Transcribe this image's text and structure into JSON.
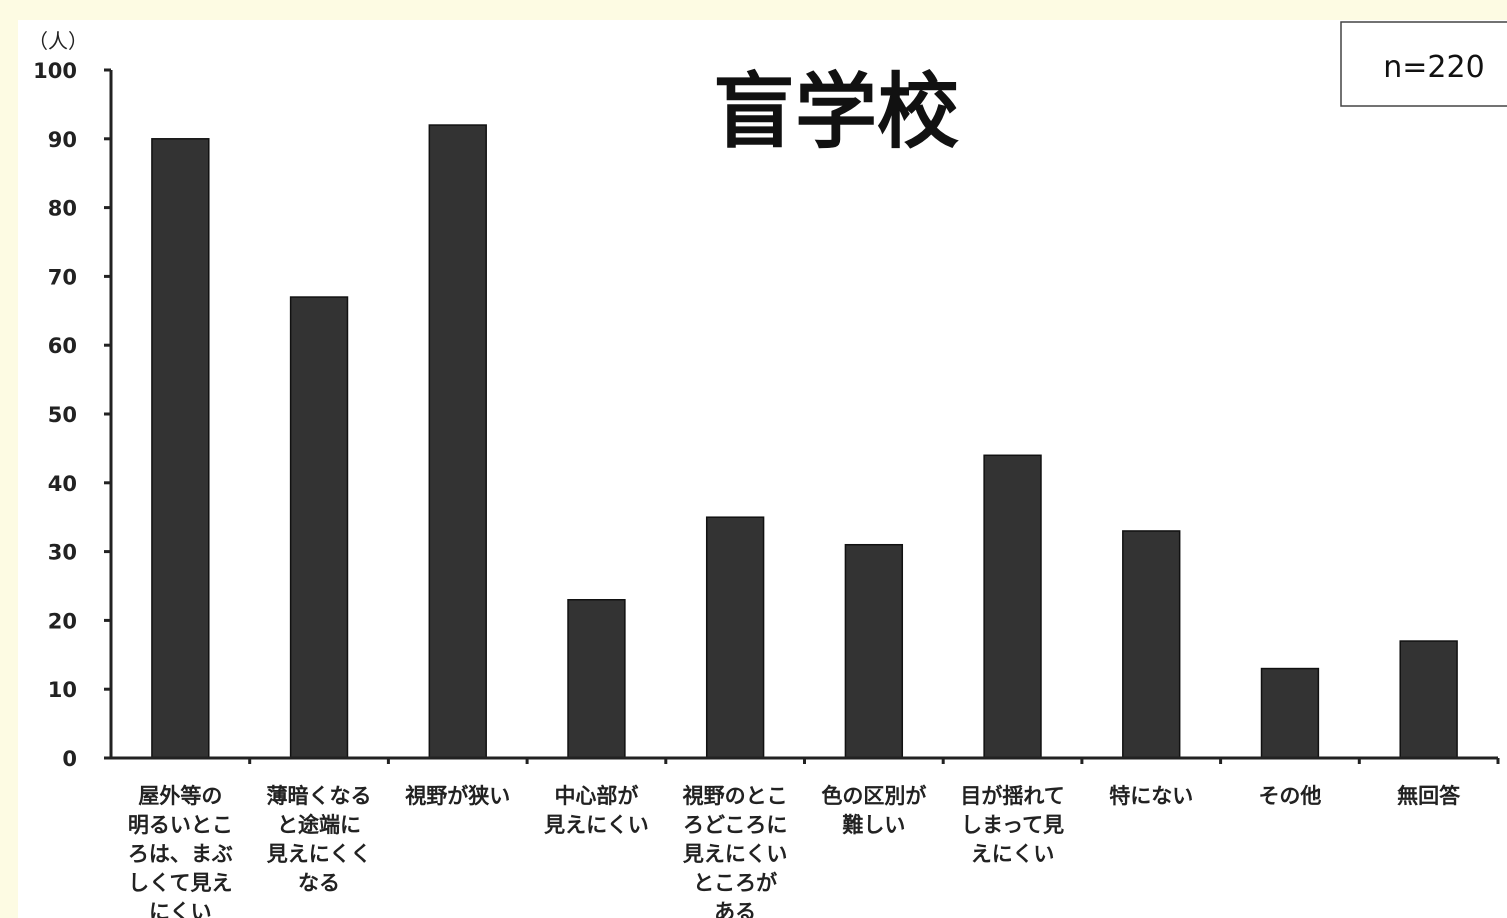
{
  "chart_data": {
    "type": "bar",
    "title": "盲学校",
    "unit_label": "（人）",
    "sample_size_label": "n=220",
    "ylim": [
      0,
      100
    ],
    "y_ticks": [
      0,
      10,
      20,
      30,
      40,
      50,
      60,
      70,
      80,
      90,
      100
    ],
    "grid": false,
    "bar_color": "#333333",
    "categories": [
      [
        "屋外等の",
        "明るいとこ",
        "ろは、まぶ",
        "しくて見え",
        "にくい"
      ],
      [
        "薄暗くなる",
        "と途端に",
        "見えにくく",
        "なる"
      ],
      [
        "視野が狭い"
      ],
      [
        "中心部が",
        "見えにくい"
      ],
      [
        "視野のとこ",
        "ろどころに",
        "見えにくい",
        "ところが",
        "ある"
      ],
      [
        "色の区別が",
        "難しい"
      ],
      [
        "目が揺れて",
        "しまって見",
        "えにくい"
      ],
      [
        "特にない"
      ],
      [
        "その他"
      ],
      [
        "無回答"
      ]
    ],
    "values": [
      90,
      67,
      92,
      23,
      35,
      31,
      44,
      33,
      13,
      17
    ]
  }
}
